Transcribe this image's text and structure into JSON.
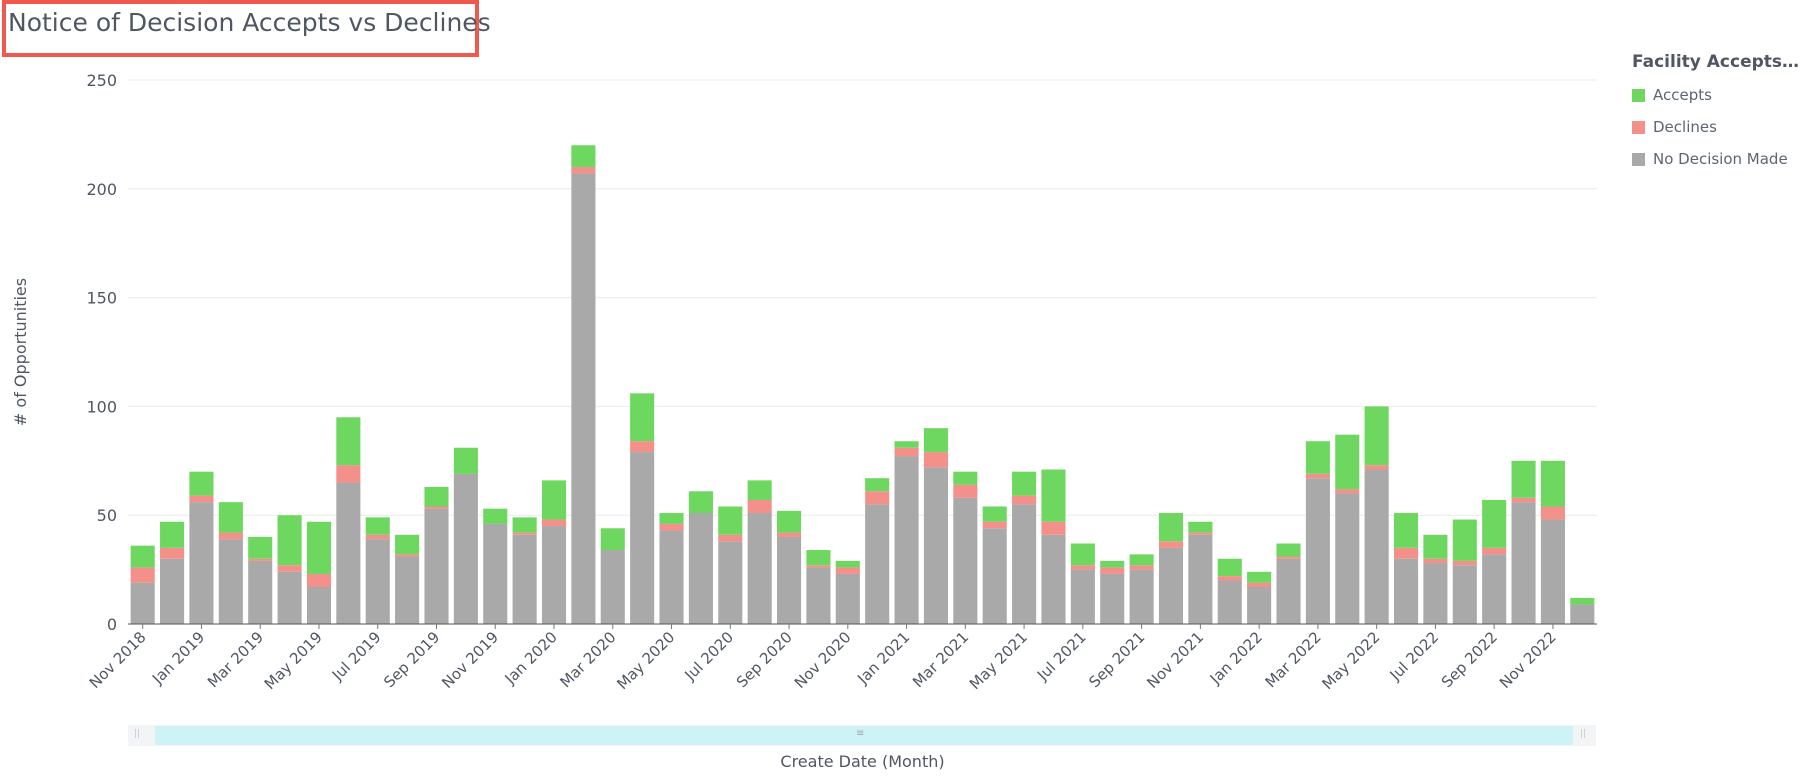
{
  "title": "Notice of Decision Accepts vs Declines",
  "legend": {
    "title": "Facility Accepts R…",
    "items": [
      {
        "label": "Accepts",
        "color": "#6ed75f"
      },
      {
        "label": "Declines",
        "color": "#f4908a"
      },
      {
        "label": "No Decision Made",
        "color": "#a9a9a9"
      }
    ]
  },
  "chart_data": {
    "type": "bar",
    "stacked": true,
    "xlabel": "Create Date (Month)",
    "ylabel": "# of Opportunities",
    "ylim": [
      0,
      250
    ],
    "yticks": [
      0,
      50,
      100,
      150,
      200,
      250
    ],
    "grid": true,
    "legend_position": "right",
    "categories": [
      "Nov 2018",
      "Dec 2018",
      "Jan 2019",
      "Feb 2019",
      "Mar 2019",
      "Apr 2019",
      "May 2019",
      "Jun 2019",
      "Jul 2019",
      "Aug 2019",
      "Sep 2019",
      "Oct 2019",
      "Nov 2019",
      "Dec 2019",
      "Jan 2020",
      "Feb 2020",
      "Mar 2020",
      "Apr 2020",
      "May 2020",
      "Jun 2020",
      "Jul 2020",
      "Aug 2020",
      "Sep 2020",
      "Oct 2020",
      "Nov 2020",
      "Dec 2020",
      "Jan 2021",
      "Feb 2021",
      "Mar 2021",
      "Apr 2021",
      "May 2021",
      "Jun 2021",
      "Jul 2021",
      "Aug 2021",
      "Sep 2021",
      "Oct 2021",
      "Nov 2021",
      "Dec 2021",
      "Jan 2022",
      "Feb 2022",
      "Mar 2022",
      "Apr 2022",
      "May 2022",
      "Jun 2022",
      "Jul 2022",
      "Aug 2022",
      "Sep 2022",
      "Oct 2022",
      "Nov 2022",
      "Dec 2022"
    ],
    "tick_labels": [
      "Nov 2018",
      "Jan 2019",
      "Mar 2019",
      "May 2019",
      "Jul 2019",
      "Sep 2019",
      "Nov 2019",
      "Jan 2020",
      "Mar 2020",
      "May 2020",
      "Jul 2020",
      "Sep 2020",
      "Nov 2020",
      "Jan 2021",
      "Mar 2021",
      "May 2021",
      "Jul 2021",
      "Sep 2021",
      "Nov 2021",
      "Jan 2022",
      "Mar 2022",
      "May 2022",
      "Jul 2022",
      "Sep 2022",
      "Nov 2022"
    ],
    "series": [
      {
        "name": "No Decision Made",
        "values": [
          19,
          30,
          56,
          39,
          29,
          24,
          17,
          65,
          39,
          31,
          53,
          69,
          46,
          41,
          45,
          207,
          34,
          79,
          43,
          51,
          38,
          51,
          40,
          26,
          23,
          55,
          77,
          72,
          58,
          44,
          55,
          41,
          25,
          23,
          25,
          35,
          41,
          20,
          17,
          30,
          67,
          60,
          71,
          30,
          28,
          27,
          32,
          56,
          48,
          9
        ]
      },
      {
        "name": "Declines",
        "values": [
          7,
          5,
          3,
          3,
          1,
          3,
          6,
          8,
          2,
          1,
          1,
          0,
          0,
          1,
          3,
          3,
          0,
          5,
          3,
          0,
          3,
          6,
          2,
          1,
          3,
          6,
          4,
          7,
          6,
          3,
          4,
          6,
          2,
          3,
          2,
          3,
          1,
          2,
          2,
          1,
          2,
          2,
          2,
          5,
          2,
          2,
          3,
          2,
          6,
          0
        ]
      },
      {
        "name": "Accepts",
        "values": [
          10,
          12,
          11,
          14,
          10,
          23,
          24,
          22,
          8,
          9,
          9,
          12,
          7,
          7,
          18,
          10,
          10,
          22,
          5,
          10,
          13,
          9,
          10,
          7,
          3,
          6,
          3,
          11,
          6,
          7,
          11,
          24,
          10,
          3,
          5,
          13,
          5,
          8,
          5,
          6,
          15,
          25,
          27,
          16,
          11,
          19,
          22,
          17,
          21,
          3
        ]
      }
    ]
  }
}
